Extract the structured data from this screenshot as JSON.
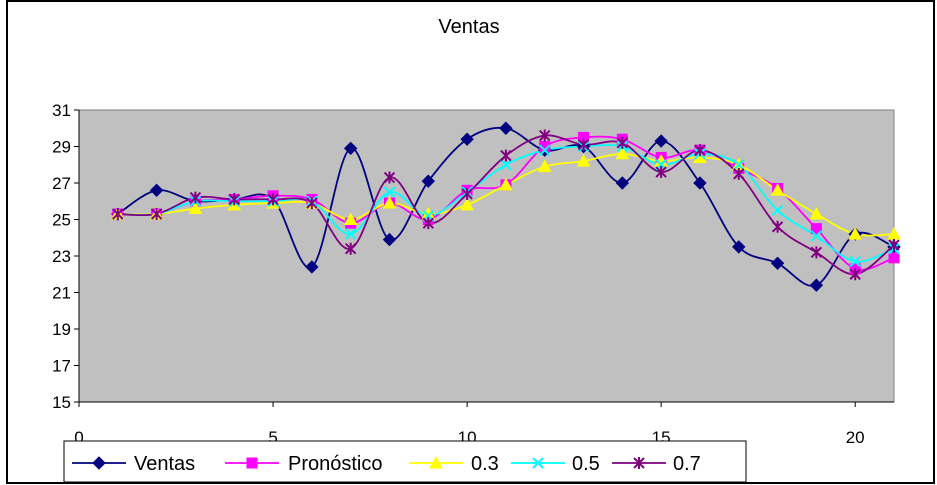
{
  "chart_data": {
    "type": "line",
    "title": "Ventas",
    "xlim": [
      0,
      21
    ],
    "ylim": [
      15,
      31
    ],
    "x_ticks": [
      0,
      5,
      10,
      15,
      20
    ],
    "y_ticks": [
      15,
      17,
      19,
      21,
      23,
      25,
      27,
      29,
      31
    ],
    "grid": false,
    "plot_background": "#c0c0c0",
    "legend_position": "bottom",
    "x": [
      1,
      2,
      3,
      4,
      5,
      6,
      7,
      8,
      9,
      10,
      11,
      12,
      13,
      14,
      15,
      16,
      17,
      18,
      19,
      20,
      21
    ],
    "series": [
      {
        "name": "Ventas",
        "color": "#000080",
        "marker": "diamond",
        "values": [
          25.3,
          26.6,
          26.0,
          26.1,
          26.1,
          22.4,
          28.9,
          23.9,
          27.1,
          29.4,
          30.0,
          28.8,
          29.0,
          27.0,
          29.3,
          27.0,
          23.5,
          22.6,
          21.4,
          24.2,
          23.5
        ]
      },
      {
        "name": "Pronóstico",
        "color": "#ff00ff",
        "marker": "square",
        "values": [
          25.3,
          25.3,
          26.0,
          26.1,
          26.3,
          26.1,
          24.8,
          25.9,
          25.0,
          26.6,
          26.9,
          29.0,
          29.5,
          29.4,
          28.4,
          28.8,
          27.8,
          26.7,
          24.5,
          22.3,
          22.9
        ]
      },
      {
        "name": "0.3",
        "color": "#ffff00",
        "marker": "triangle",
        "values": [
          25.3,
          25.3,
          25.6,
          25.8,
          25.9,
          25.9,
          25.0,
          25.9,
          25.3,
          25.8,
          26.9,
          27.9,
          28.2,
          28.6,
          28.2,
          28.4,
          28.0,
          26.6,
          25.3,
          24.2,
          24.2
        ]
      },
      {
        "name": "0.5",
        "color": "#00ffff",
        "marker": "x",
        "values": [
          25.3,
          25.3,
          26.0,
          26.0,
          26.0,
          26.0,
          24.2,
          26.5,
          25.2,
          26.5,
          28.0,
          28.8,
          29.0,
          29.0,
          28.0,
          28.6,
          28.0,
          25.5,
          24.1,
          22.7,
          23.4
        ]
      },
      {
        "name": "0.7",
        "color": "#800080",
        "marker": "star",
        "values": [
          25.3,
          25.3,
          26.2,
          26.1,
          26.1,
          25.9,
          23.4,
          27.3,
          24.8,
          26.4,
          28.5,
          29.6,
          29.1,
          29.2,
          27.6,
          28.8,
          27.5,
          24.6,
          23.2,
          22.0,
          23.6
        ]
      }
    ]
  }
}
